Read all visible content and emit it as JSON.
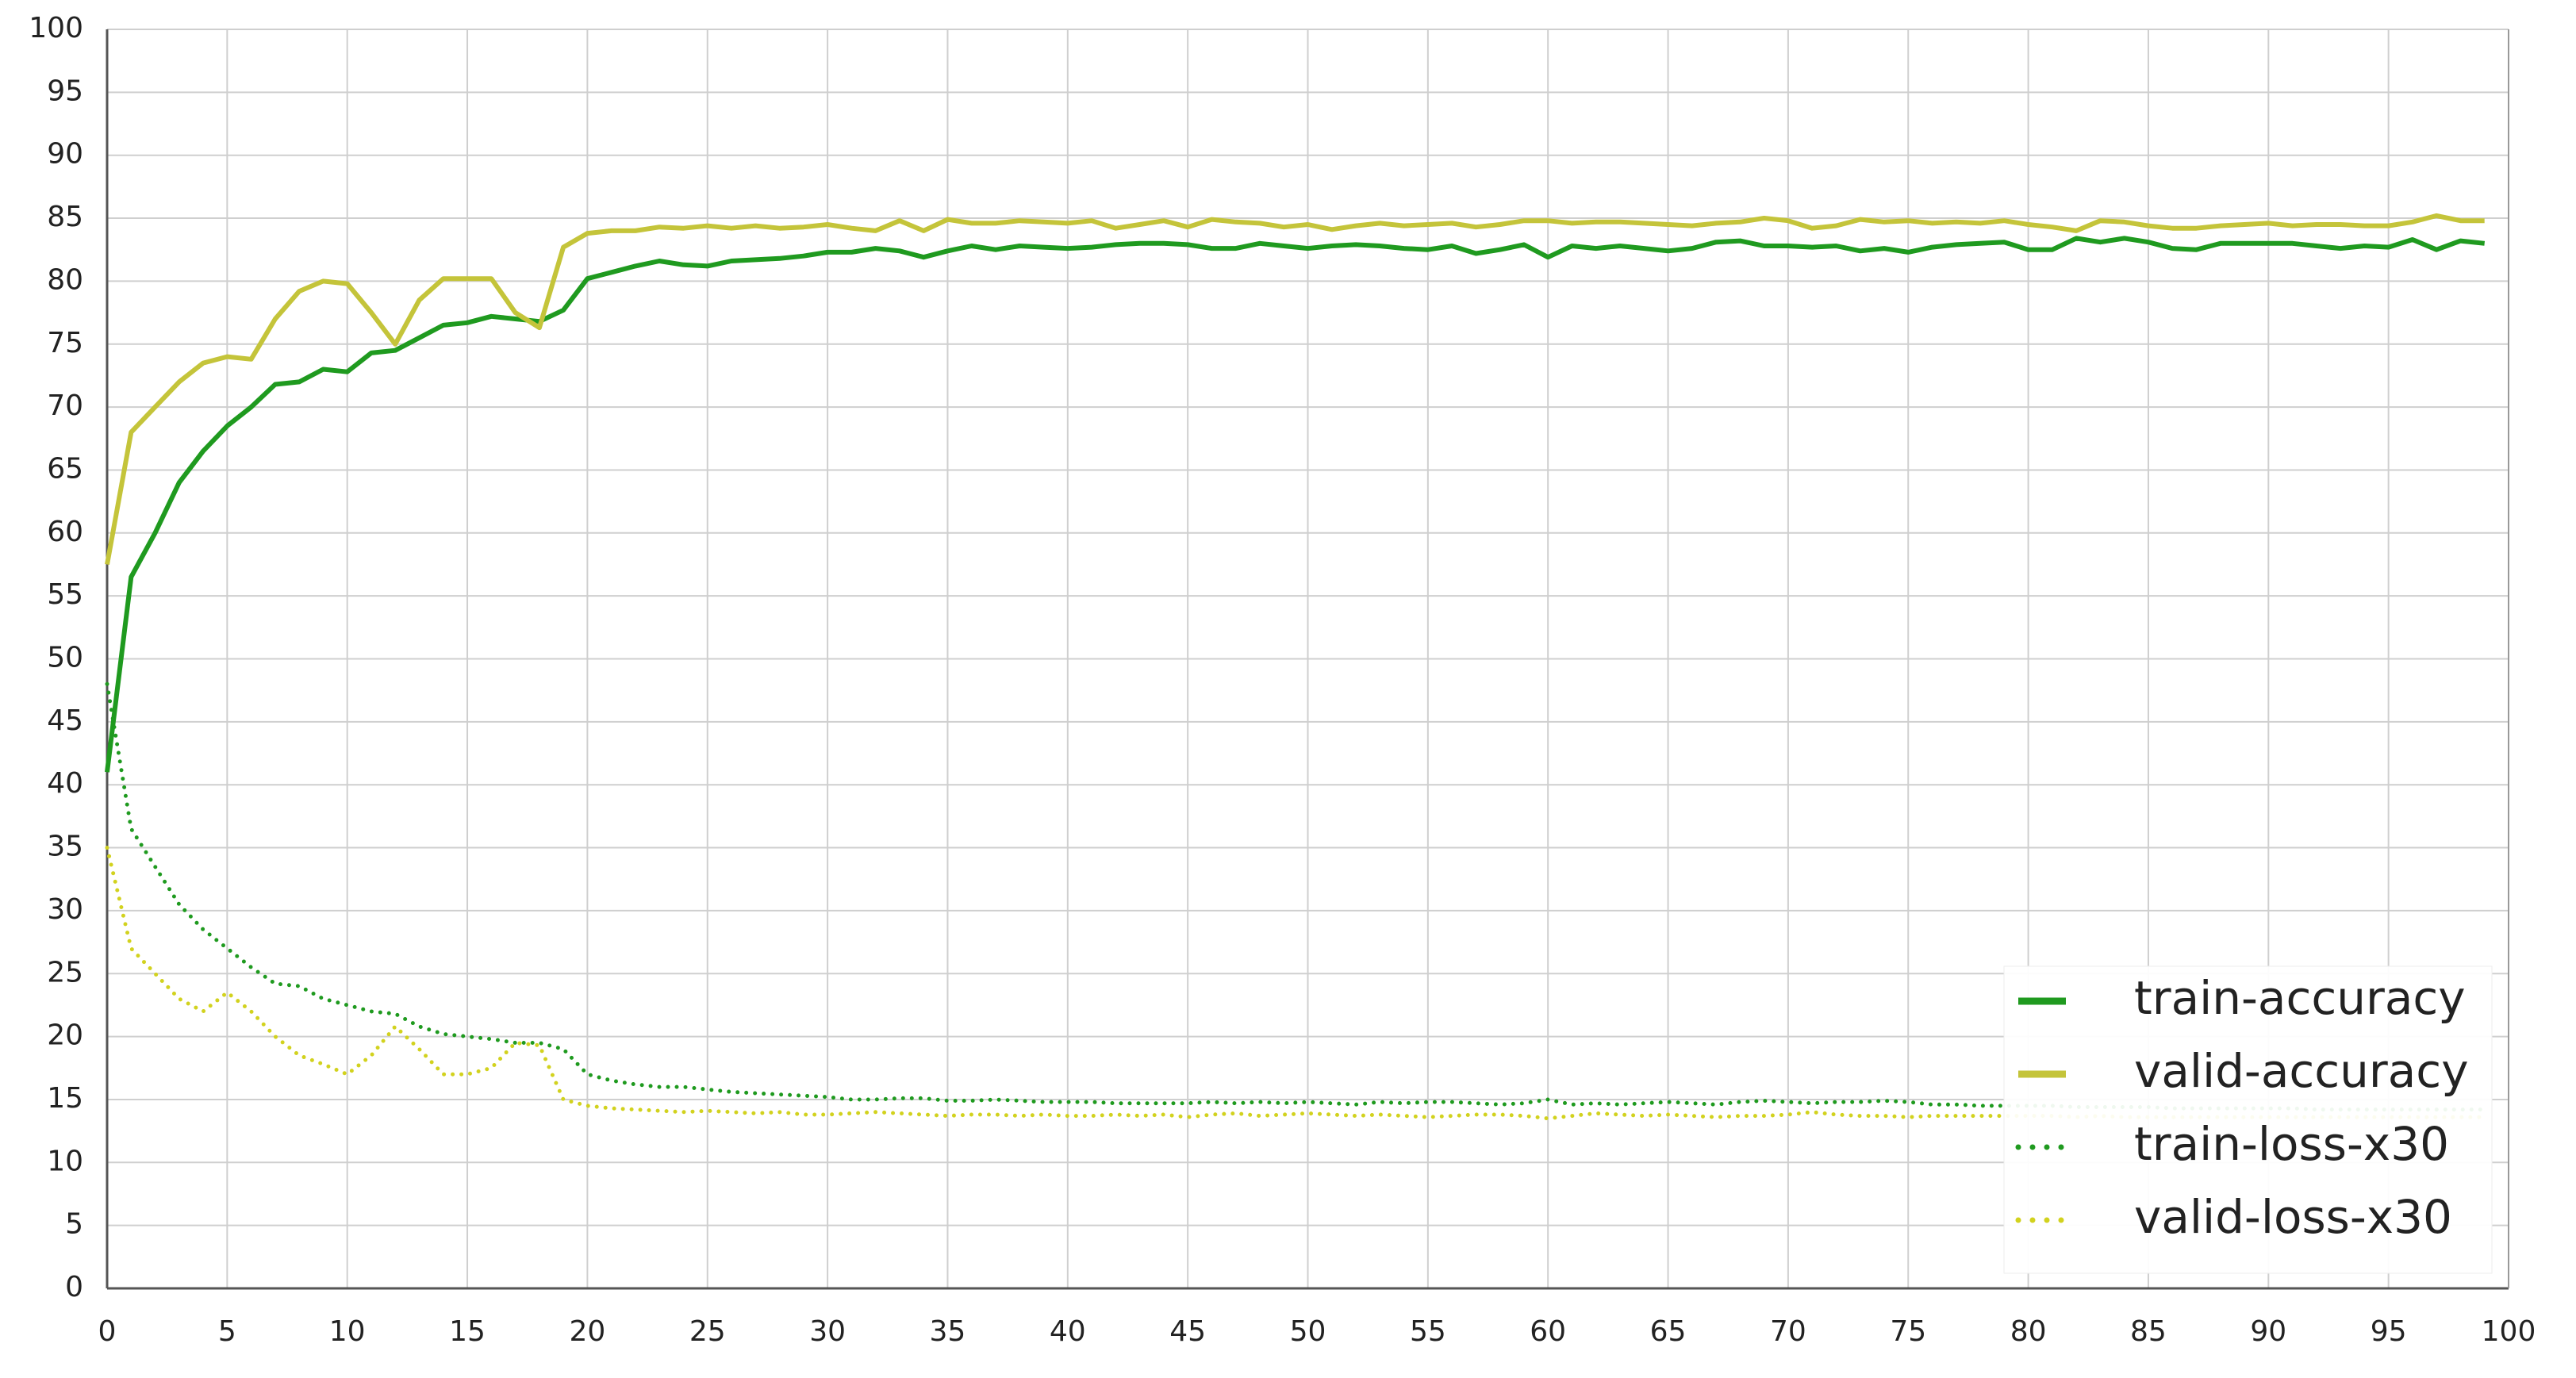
{
  "chart_data": {
    "type": "line",
    "x": [
      0,
      1,
      2,
      3,
      4,
      5,
      6,
      7,
      8,
      9,
      10,
      11,
      12,
      13,
      14,
      15,
      16,
      17,
      18,
      19,
      20,
      21,
      22,
      23,
      24,
      25,
      26,
      27,
      28,
      29,
      30,
      31,
      32,
      33,
      34,
      35,
      36,
      37,
      38,
      39,
      40,
      41,
      42,
      43,
      44,
      45,
      46,
      47,
      48,
      49,
      50,
      51,
      52,
      53,
      54,
      55,
      56,
      57,
      58,
      59,
      60,
      61,
      62,
      63,
      64,
      65,
      66,
      67,
      68,
      69,
      70,
      71,
      72,
      73,
      74,
      75,
      76,
      77,
      78,
      79,
      80,
      81,
      82,
      83,
      84,
      85,
      86,
      87,
      88,
      89,
      90,
      91,
      92,
      93,
      94,
      95,
      96,
      97,
      98,
      99
    ],
    "series": [
      {
        "name": "train-accuracy",
        "color": "#1f9a1f",
        "dash": "solid",
        "values": [
          41,
          56.5,
          60,
          64,
          66.5,
          68.5,
          70,
          71.8,
          72,
          73,
          72.8,
          74.3,
          74.5,
          75.5,
          76.5,
          76.7,
          77.2,
          77,
          76.8,
          77.7,
          80.2,
          80.7,
          81.2,
          81.6,
          81.3,
          81.2,
          81.6,
          81.7,
          81.8,
          82,
          82.3,
          82.3,
          82.6,
          82.4,
          81.9,
          82.4,
          82.8,
          82.5,
          82.8,
          82.7,
          82.6,
          82.7,
          82.9,
          83,
          83,
          82.9,
          82.6,
          82.6,
          83,
          82.8,
          82.6,
          82.8,
          82.9,
          82.8,
          82.6,
          82.5,
          82.8,
          82.2,
          82.5,
          82.9,
          81.9,
          82.8,
          82.6,
          82.8,
          82.6,
          82.4,
          82.6,
          83.1,
          83.2,
          82.8,
          82.8,
          82.7,
          82.8,
          82.4,
          82.6,
          82.3,
          82.7,
          82.9,
          83,
          83.1,
          82.5,
          82.5,
          83.4,
          83.1,
          83.4,
          83.1,
          82.6,
          82.5,
          83,
          83,
          83,
          83,
          82.8,
          82.6,
          82.8,
          82.7,
          83.3,
          82.5,
          83.2,
          83
        ]
      },
      {
        "name": "valid-accuracy",
        "color": "#c4c43a",
        "dash": "solid",
        "values": [
          57.5,
          68,
          70,
          72,
          73.5,
          74,
          73.8,
          77,
          79.2,
          80,
          79.8,
          77.5,
          75,
          78.5,
          80.2,
          80.2,
          80.2,
          77.5,
          76.3,
          82.7,
          83.8,
          84,
          84,
          84.3,
          84.2,
          84.4,
          84.2,
          84.4,
          84.2,
          84.3,
          84.5,
          84.2,
          84,
          84.8,
          84,
          84.9,
          84.6,
          84.6,
          84.8,
          84.7,
          84.6,
          84.8,
          84.2,
          84.5,
          84.8,
          84.3,
          84.9,
          84.7,
          84.6,
          84.3,
          84.5,
          84.1,
          84.4,
          84.6,
          84.4,
          84.5,
          84.6,
          84.3,
          84.5,
          84.8,
          84.8,
          84.6,
          84.7,
          84.7,
          84.6,
          84.5,
          84.4,
          84.6,
          84.7,
          85,
          84.8,
          84.2,
          84.4,
          84.9,
          84.7,
          84.8,
          84.6,
          84.7,
          84.6,
          84.8,
          84.5,
          84.3,
          84,
          84.8,
          84.7,
          84.4,
          84.2,
          84.2,
          84.4,
          84.5,
          84.6,
          84.4,
          84.5,
          84.5,
          84.4,
          84.4,
          84.7,
          85.2,
          84.8,
          84.8
        ]
      },
      {
        "name": "train-loss-x30",
        "color": "#1f9a1f",
        "dash": "dotted",
        "values": [
          48,
          36.5,
          33.5,
          30.5,
          28.5,
          27,
          25.5,
          24.2,
          24,
          23,
          22.5,
          22,
          21.8,
          20.8,
          20.2,
          20,
          19.8,
          19.5,
          19.5,
          19,
          17,
          16.5,
          16.2,
          16,
          16,
          15.8,
          15.6,
          15.5,
          15.4,
          15.3,
          15.2,
          15,
          15,
          15.1,
          15.1,
          14.9,
          14.9,
          15,
          14.9,
          14.8,
          14.8,
          14.8,
          14.7,
          14.7,
          14.7,
          14.7,
          14.8,
          14.7,
          14.8,
          14.7,
          14.8,
          14.7,
          14.6,
          14.8,
          14.7,
          14.8,
          14.8,
          14.7,
          14.6,
          14.7,
          15,
          14.6,
          14.7,
          14.6,
          14.7,
          14.8,
          14.7,
          14.6,
          14.8,
          14.9,
          14.8,
          14.7,
          14.8,
          14.8,
          14.9,
          14.8,
          14.6,
          14.6,
          14.5,
          14.5,
          14.5,
          14.5,
          14.4,
          14.4,
          14.4,
          14.4,
          14.3,
          14.3,
          14.3,
          14.3,
          14.3,
          14.3,
          14.2,
          14.2,
          14.2,
          14.2,
          14.2,
          14.2,
          14.2,
          14.2
        ]
      },
      {
        "name": "valid-loss-x30",
        "color": "#d2d21e",
        "dash": "dotted",
        "values": [
          35,
          27,
          25,
          23,
          22,
          23.5,
          22,
          20,
          18.5,
          17.8,
          17,
          18.5,
          20.8,
          19,
          17,
          17,
          17.5,
          19.5,
          19.3,
          15,
          14.5,
          14.3,
          14.2,
          14.1,
          14,
          14.1,
          14,
          13.9,
          14,
          13.8,
          13.8,
          13.9,
          14,
          13.9,
          13.8,
          13.7,
          13.8,
          13.8,
          13.7,
          13.8,
          13.7,
          13.7,
          13.8,
          13.7,
          13.8,
          13.6,
          13.8,
          13.9,
          13.7,
          13.8,
          13.9,
          13.8,
          13.7,
          13.8,
          13.7,
          13.6,
          13.7,
          13.8,
          13.8,
          13.7,
          13.5,
          13.7,
          13.9,
          13.8,
          13.7,
          13.8,
          13.7,
          13.6,
          13.7,
          13.7,
          13.8,
          14,
          13.8,
          13.7,
          13.7,
          13.6,
          13.7,
          13.7,
          13.7,
          13.7,
          13.7,
          13.7,
          13.6,
          13.7,
          13.6,
          13.6,
          13.6,
          13.6,
          13.6,
          13.6,
          13.6,
          13.6,
          13.6,
          13.6,
          13.6,
          13.6,
          13.6,
          13.6,
          13.6,
          13.6
        ]
      }
    ],
    "xlim": [
      0,
      100
    ],
    "xticks": [
      0,
      5,
      10,
      15,
      20,
      25,
      30,
      35,
      40,
      45,
      50,
      55,
      60,
      65,
      70,
      75,
      80,
      85,
      90,
      95,
      100
    ],
    "ylim": [
      0,
      100
    ],
    "yticks": [
      0,
      5,
      10,
      15,
      20,
      25,
      30,
      35,
      40,
      45,
      50,
      55,
      60,
      65,
      70,
      75,
      80,
      85,
      90,
      95,
      100
    ],
    "grid": true,
    "legend": "lower right"
  }
}
